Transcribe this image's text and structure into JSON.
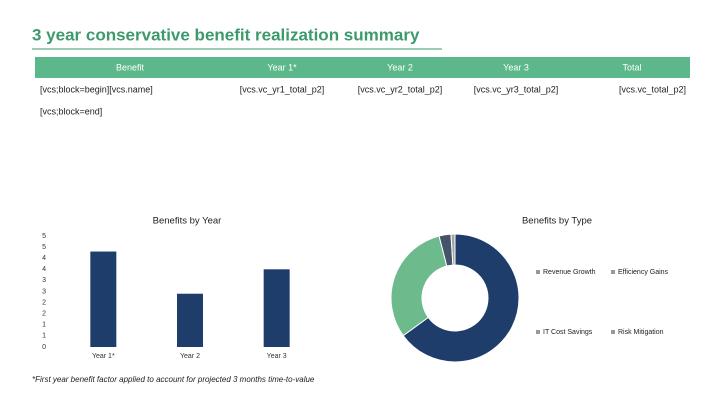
{
  "header": {
    "title": "3 year conservative benefit realization summary"
  },
  "table": {
    "columns": [
      "Benefit",
      "Year 1*",
      "Year 2",
      "Year 3",
      "Total"
    ],
    "rows": [
      [
        "[vcs;block=begin][vcs.name]",
        "[vcs.vc_yr1_total_p2]",
        "[vcs.vc_yr2_total_p2]",
        "[vcs.vc_yr3_total_p2]",
        "[vcs.vc_total_p2]"
      ]
    ],
    "block_end": "[vcs;block=end]"
  },
  "chart_data": [
    {
      "type": "bar",
      "title": "Benefits by Year",
      "categories": [
        "Year 1*",
        "Year 2",
        "Year 3"
      ],
      "values": [
        4.3,
        2.4,
        3.5
      ],
      "color": "#1f3d6b",
      "ylim": [
        0,
        5
      ],
      "yticks": [
        0,
        {
          "value": 0.5,
          "label": "1"
        },
        1,
        {
          "value": 1.5,
          "label": "2"
        },
        2,
        {
          "value": 2.5,
          "label": "3"
        },
        3,
        {
          "value": 3.5,
          "label": "4"
        },
        4,
        {
          "value": 4.5,
          "label": "5"
        },
        5
      ],
      "grid": false
    },
    {
      "type": "donut",
      "title": "Benefits by Type",
      "categories": [
        "Revenue Growth",
        "Efficiency Gains",
        "IT Cost Savings",
        "Risk Mitigation"
      ],
      "values": [
        65,
        31,
        3,
        1
      ],
      "colors": [
        "#1f3d6b",
        "#6dbb8c",
        "#44546a",
        "#a5a5a5"
      ]
    }
  ],
  "footnote": "*First year benefit factor applied to account for projected 3 months time-to-value"
}
